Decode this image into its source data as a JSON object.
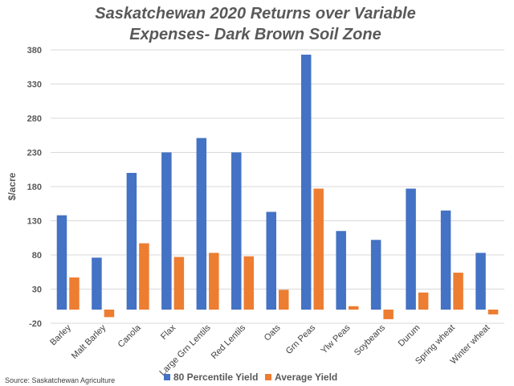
{
  "chart_data": {
    "type": "bar",
    "title_line1": "Saskatchewan 2020 Returns over Variable",
    "title_line2": "Expenses- Dark Brown Soil Zone",
    "ylabel": "$/acre",
    "ylim": [
      -20,
      380
    ],
    "yticks": [
      -20,
      30,
      80,
      130,
      180,
      230,
      280,
      330,
      380
    ],
    "grid": true,
    "legend_position": "bottom",
    "categories": [
      "Barley",
      "Malt Barley",
      "Canola",
      "Flax",
      "Large Grn Lentils",
      "Red Lentils",
      "Oats",
      "Grn Peas",
      "Ylw Peas",
      "Soybeans",
      "Durum",
      "Spring wheat",
      "Winter wheat"
    ],
    "series": [
      {
        "name": "80 Percentile Yield",
        "color": "#4472C4",
        "values": [
          138,
          76,
          200,
          230,
          251,
          230,
          143,
          373,
          115,
          102,
          177,
          145,
          83
        ]
      },
      {
        "name": "Average Yield",
        "color": "#ED7D31",
        "values": [
          47,
          -11,
          97,
          77,
          83,
          78,
          29,
          177,
          5,
          -14,
          25,
          54,
          -7
        ]
      }
    ],
    "source": "Source: Saskatchewan Agriculture"
  }
}
